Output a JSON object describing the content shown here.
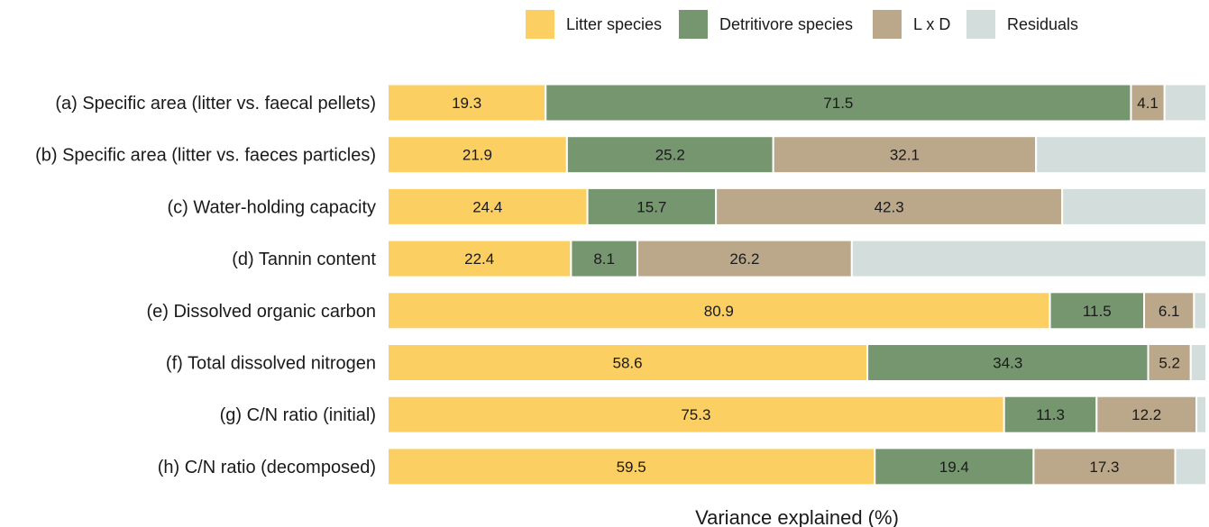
{
  "chart_data": {
    "type": "bar",
    "orientation": "horizontal",
    "stacked": true,
    "xlabel": "Variance explained (%)",
    "ylabel": "",
    "xlim": [
      0,
      100
    ],
    "grid": false,
    "legend_position": "top",
    "categories": [
      "(a) Specific area (litter vs. faecal pellets)",
      "(b) Specific  area (litter vs. faeces particles)",
      "(c) Water-holding capacity",
      "(d) Tannin content",
      "(e) Dissolved organic carbon",
      "(f) Total dissolved nitrogen",
      "(g) C/N ratio (initial)",
      "(h) C/N ratio (decomposed)"
    ],
    "series": [
      {
        "name": "Litter species",
        "color": "#FBCF61",
        "values": [
          19.3,
          21.9,
          24.4,
          22.4,
          80.9,
          58.6,
          75.3,
          59.5
        ]
      },
      {
        "name": "Detritivore species",
        "color": "#75966F",
        "values": [
          71.5,
          25.2,
          15.7,
          8.1,
          11.5,
          34.3,
          11.3,
          19.4
        ]
      },
      {
        "name": "L x D",
        "color": "#BBA88B",
        "values": [
          4.1,
          32.1,
          42.3,
          26.2,
          6.1,
          5.2,
          12.2,
          17.3
        ]
      },
      {
        "name": "Residuals",
        "color": "#D3DEDC",
        "values": [
          5.1,
          20.8,
          17.6,
          43.3,
          1.5,
          1.9,
          1.2,
          3.8
        ]
      }
    ],
    "value_labels_shown_for": [
      "Litter species",
      "Detritivore species",
      "L x D"
    ]
  }
}
